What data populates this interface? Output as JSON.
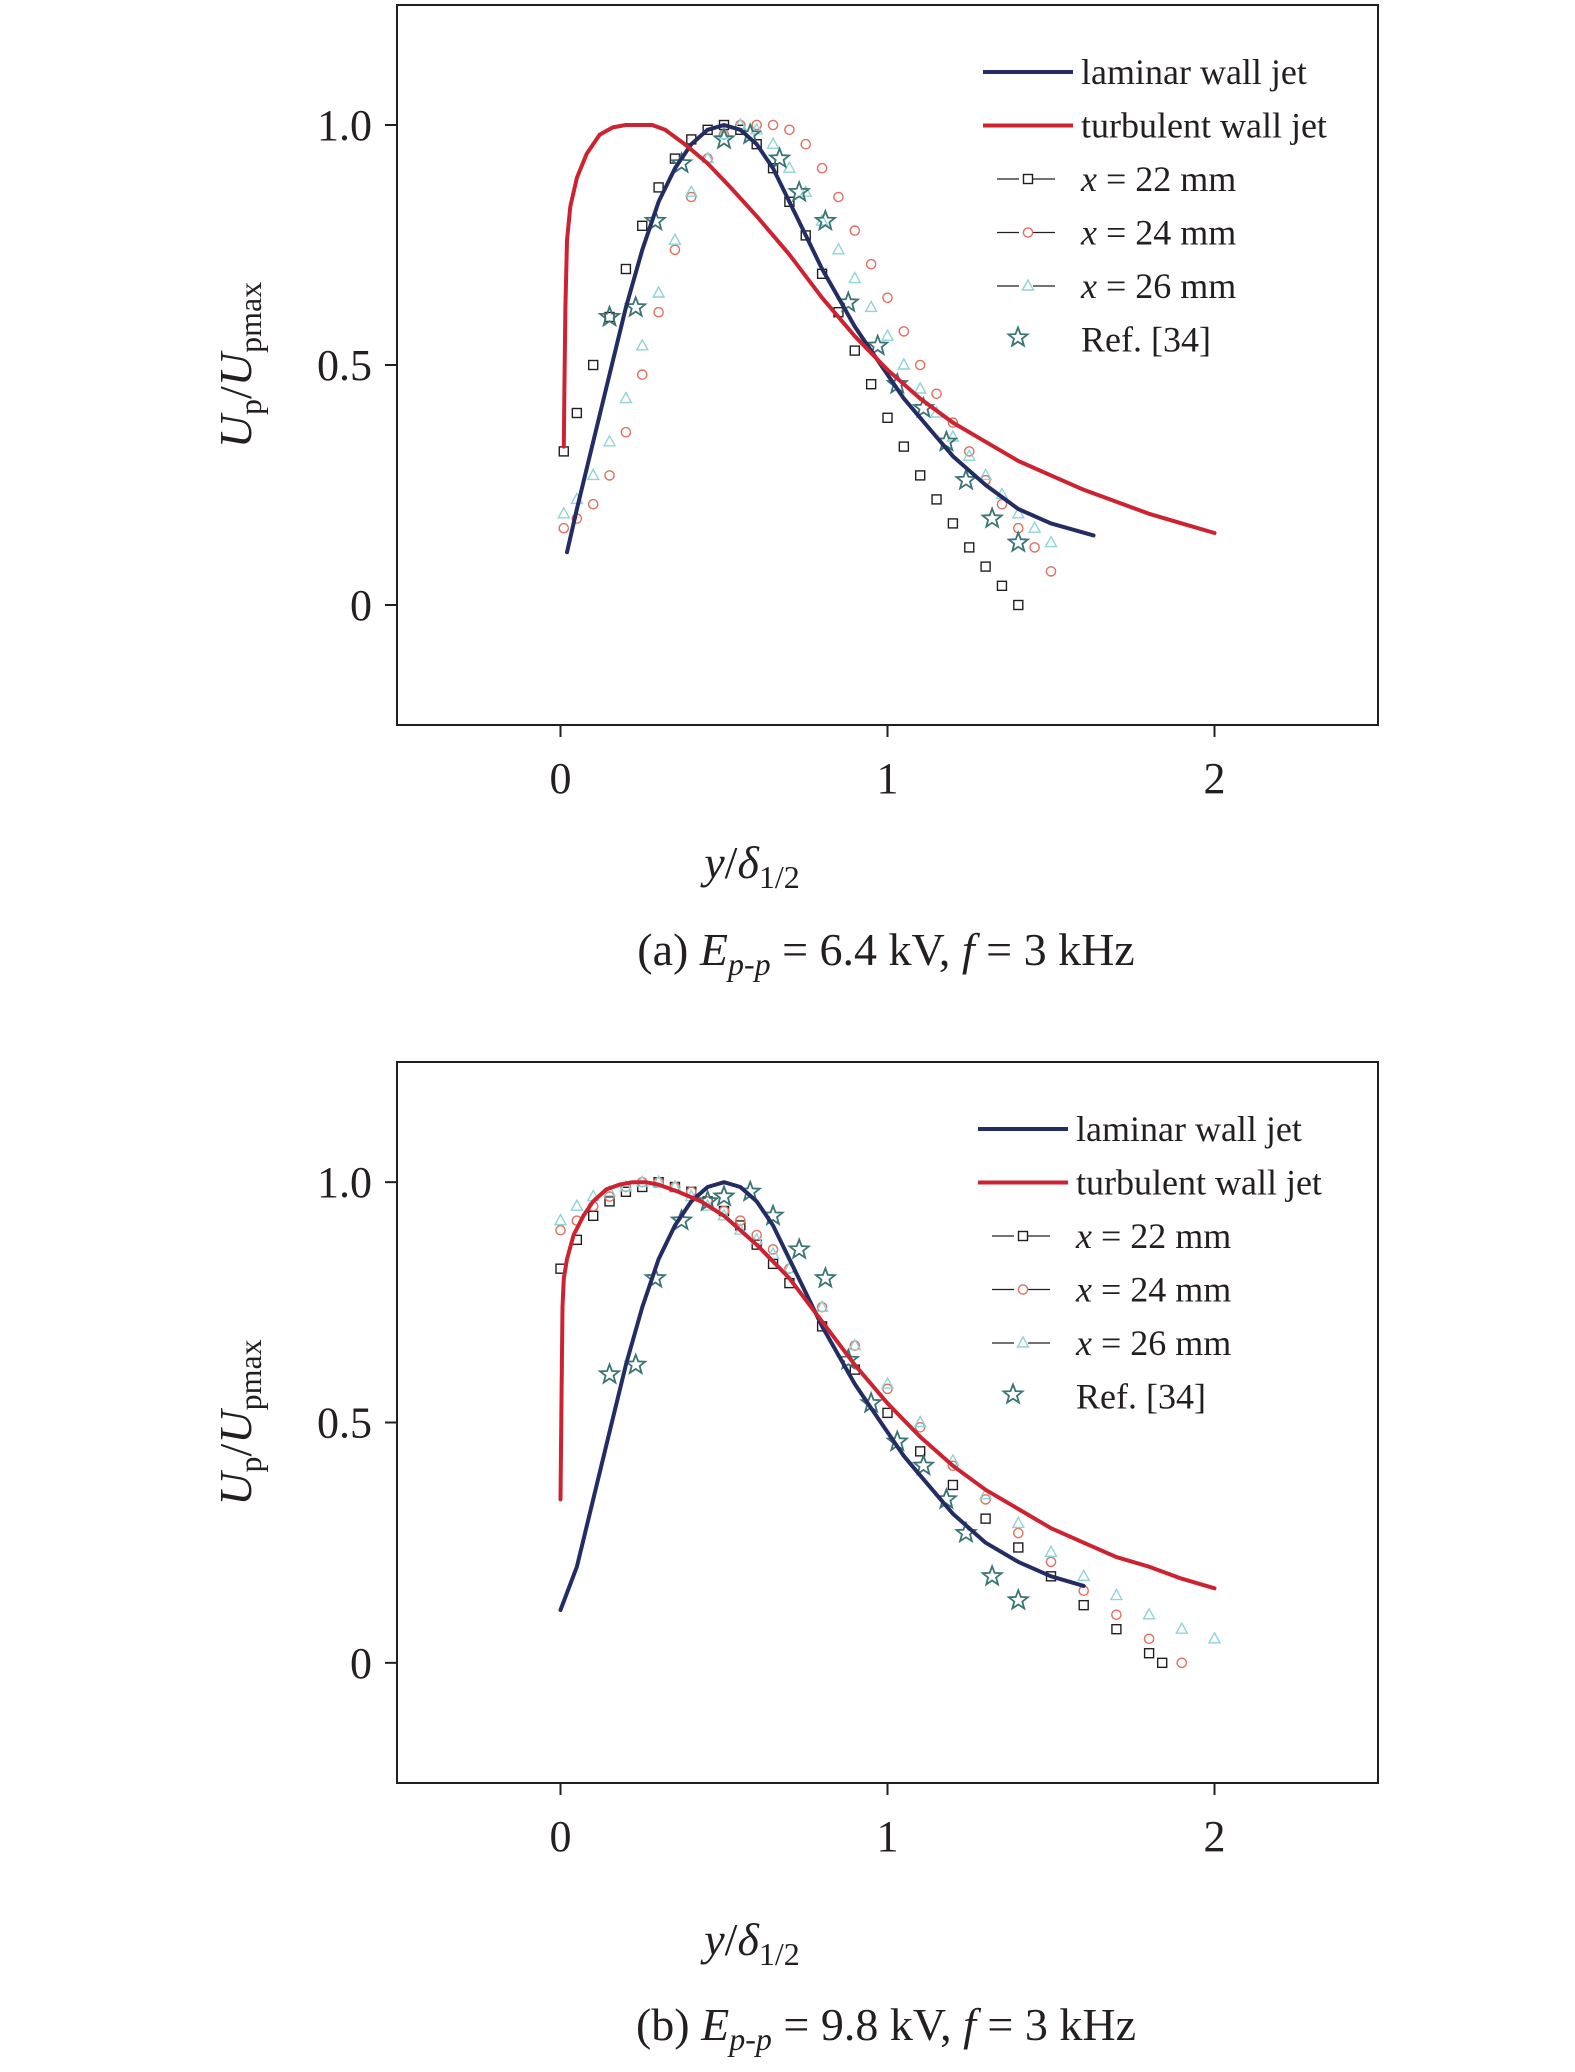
{
  "colors": {
    "laminar": "#232d63",
    "turbulent": "#cd2331",
    "x22": "#231f20",
    "x24": "#e07060",
    "x26": "#8fd4d8",
    "ref": "#3a7474",
    "axis": "#231f20"
  },
  "chart_data": [
    {
      "type": "line",
      "panel": "a",
      "caption": {
        "prefix": "(a) ",
        "E": "E",
        "E_sub": "p-p",
        "mid": " = 6.4 kV, ",
        "f": "f",
        "suffix": " = 3 kHz"
      },
      "xlabel": {
        "y": "y",
        "slash": "/",
        "delta": "δ",
        "delta_sub": "1/2"
      },
      "ylabel": {
        "U": "U",
        "U_sub": "p",
        "slash": "/",
        "U2": "U",
        "U2_sub": "pmax"
      },
      "xlim": [
        -0.5,
        2.5
      ],
      "ylim": [
        -0.25,
        1.25
      ],
      "x_ticks": [
        0,
        1,
        2
      ],
      "x_tick_labels": [
        "0",
        "1",
        "2"
      ],
      "y_ticks": [
        0,
        0.5,
        1.0
      ],
      "y_tick_labels": [
        "0",
        "0.5",
        "1.0"
      ],
      "legend_position": "top-right",
      "series": [
        {
          "name": "laminar wall jet",
          "style": "line",
          "x": [
            0.02,
            0.05,
            0.1,
            0.15,
            0.2,
            0.25,
            0.3,
            0.35,
            0.4,
            0.45,
            0.5,
            0.55,
            0.6,
            0.65,
            0.7,
            0.75,
            0.8,
            0.85,
            0.9,
            0.95,
            1.0,
            1.05,
            1.1,
            1.15,
            1.2,
            1.3,
            1.4,
            1.5,
            1.63
          ],
          "y": [
            0.11,
            0.2,
            0.34,
            0.48,
            0.62,
            0.74,
            0.84,
            0.91,
            0.96,
            0.99,
            1.0,
            0.99,
            0.96,
            0.91,
            0.84,
            0.77,
            0.7,
            0.64,
            0.58,
            0.53,
            0.48,
            0.43,
            0.39,
            0.35,
            0.31,
            0.25,
            0.2,
            0.17,
            0.145
          ]
        },
        {
          "name": "turbulent wall jet",
          "style": "line",
          "x": [
            0.01,
            0.012,
            0.015,
            0.02,
            0.03,
            0.05,
            0.08,
            0.12,
            0.16,
            0.2,
            0.24,
            0.28,
            0.32,
            0.38,
            0.45,
            0.52,
            0.6,
            0.7,
            0.8,
            0.9,
            1.0,
            1.1,
            1.2,
            1.3,
            1.4,
            1.5,
            1.6,
            1.7,
            1.8,
            1.9,
            2.0
          ],
          "y": [
            0.33,
            0.45,
            0.62,
            0.76,
            0.83,
            0.89,
            0.94,
            0.98,
            0.995,
            1.0,
            1.0,
            1.0,
            0.99,
            0.96,
            0.92,
            0.87,
            0.81,
            0.73,
            0.64,
            0.56,
            0.49,
            0.43,
            0.38,
            0.34,
            0.3,
            0.27,
            0.24,
            0.215,
            0.19,
            0.17,
            0.15
          ]
        },
        {
          "name": "x = 22 mm",
          "name_x": "x",
          "name_rest": " = 22 mm",
          "style": "square",
          "x": [
            0.01,
            0.05,
            0.1,
            0.15,
            0.2,
            0.25,
            0.3,
            0.35,
            0.4,
            0.45,
            0.5,
            0.55,
            0.6,
            0.65,
            0.7,
            0.75,
            0.8,
            0.85,
            0.9,
            0.95,
            1.0,
            1.05,
            1.1,
            1.15,
            1.2,
            1.25,
            1.3,
            1.35,
            1.4
          ],
          "y": [
            0.32,
            0.4,
            0.5,
            0.6,
            0.7,
            0.79,
            0.87,
            0.93,
            0.97,
            0.99,
            1.0,
            0.99,
            0.96,
            0.91,
            0.84,
            0.77,
            0.69,
            0.61,
            0.53,
            0.46,
            0.39,
            0.33,
            0.27,
            0.22,
            0.17,
            0.12,
            0.08,
            0.04,
            0.0
          ]
        },
        {
          "name": "x = 24 mm",
          "name_x": "x",
          "name_rest": " = 24 mm",
          "style": "circle",
          "x": [
            0.01,
            0.05,
            0.1,
            0.15,
            0.2,
            0.25,
            0.3,
            0.35,
            0.4,
            0.45,
            0.5,
            0.55,
            0.6,
            0.65,
            0.7,
            0.75,
            0.8,
            0.85,
            0.9,
            0.95,
            1.0,
            1.05,
            1.1,
            1.15,
            1.2,
            1.25,
            1.3,
            1.35,
            1.4,
            1.45,
            1.5
          ],
          "y": [
            0.16,
            0.18,
            0.21,
            0.27,
            0.36,
            0.48,
            0.61,
            0.74,
            0.85,
            0.93,
            0.98,
            1.0,
            1.0,
            1.0,
            0.99,
            0.96,
            0.91,
            0.85,
            0.78,
            0.71,
            0.64,
            0.57,
            0.5,
            0.44,
            0.38,
            0.32,
            0.26,
            0.21,
            0.16,
            0.12,
            0.07
          ]
        },
        {
          "name": "x = 26 mm",
          "name_x": "x",
          "name_rest": " = 26 mm",
          "style": "triangle",
          "x": [
            0.01,
            0.05,
            0.1,
            0.15,
            0.2,
            0.25,
            0.3,
            0.35,
            0.4,
            0.45,
            0.5,
            0.55,
            0.6,
            0.65,
            0.7,
            0.75,
            0.8,
            0.85,
            0.9,
            0.95,
            1.0,
            1.05,
            1.1,
            1.15,
            1.2,
            1.25,
            1.3,
            1.35,
            1.4,
            1.45,
            1.5
          ],
          "y": [
            0.19,
            0.22,
            0.27,
            0.34,
            0.43,
            0.54,
            0.65,
            0.76,
            0.86,
            0.93,
            0.98,
            1.0,
            0.99,
            0.96,
            0.91,
            0.86,
            0.8,
            0.74,
            0.68,
            0.62,
            0.56,
            0.5,
            0.45,
            0.4,
            0.35,
            0.31,
            0.27,
            0.23,
            0.19,
            0.16,
            0.13
          ]
        },
        {
          "name": "Ref. [34]",
          "style": "star",
          "x": [
            0.15,
            0.23,
            0.29,
            0.37,
            0.5,
            0.58,
            0.67,
            0.73,
            0.81,
            0.88,
            0.97,
            1.03,
            1.11,
            1.18,
            1.24,
            1.32,
            1.4
          ],
          "y": [
            0.6,
            0.62,
            0.8,
            0.92,
            0.97,
            0.98,
            0.93,
            0.86,
            0.8,
            0.63,
            0.54,
            0.46,
            0.41,
            0.34,
            0.26,
            0.18,
            0.13
          ]
        }
      ]
    },
    {
      "type": "line",
      "panel": "b",
      "caption": {
        "prefix": "(b) ",
        "E": "E",
        "E_sub": "p-p",
        "mid": " = 9.8 kV, ",
        "f": "f",
        "suffix": " = 3 kHz"
      },
      "xlabel": {
        "y": "y",
        "slash": "/",
        "delta": "δ",
        "delta_sub": "1/2"
      },
      "ylabel": {
        "U": "U",
        "U_sub": "p",
        "slash": "/",
        "U2": "U",
        "U2_sub": "pmax"
      },
      "xlim": [
        -0.5,
        2.5
      ],
      "ylim": [
        -0.25,
        1.25
      ],
      "x_ticks": [
        0,
        1,
        2
      ],
      "x_tick_labels": [
        "0",
        "1",
        "2"
      ],
      "y_ticks": [
        0,
        0.5,
        1.0
      ],
      "y_tick_labels": [
        "0",
        "0.5",
        "1.0"
      ],
      "legend_position": "top-right",
      "series": [
        {
          "name": "laminar wall jet",
          "style": "line",
          "x": [
            0.0,
            0.05,
            0.1,
            0.15,
            0.2,
            0.25,
            0.3,
            0.35,
            0.4,
            0.45,
            0.5,
            0.55,
            0.6,
            0.65,
            0.7,
            0.75,
            0.8,
            0.85,
            0.9,
            0.95,
            1.0,
            1.05,
            1.1,
            1.15,
            1.2,
            1.3,
            1.4,
            1.5,
            1.6
          ],
          "y": [
            0.11,
            0.2,
            0.34,
            0.48,
            0.62,
            0.74,
            0.84,
            0.91,
            0.96,
            0.99,
            1.0,
            0.99,
            0.96,
            0.91,
            0.84,
            0.77,
            0.7,
            0.64,
            0.58,
            0.53,
            0.48,
            0.43,
            0.39,
            0.35,
            0.31,
            0.25,
            0.21,
            0.18,
            0.16
          ]
        },
        {
          "name": "turbulent wall jet",
          "style": "line",
          "x": [
            0.0,
            0.003,
            0.006,
            0.01,
            0.02,
            0.04,
            0.07,
            0.1,
            0.14,
            0.18,
            0.22,
            0.26,
            0.3,
            0.36,
            0.43,
            0.5,
            0.6,
            0.7,
            0.8,
            0.9,
            1.0,
            1.1,
            1.2,
            1.3,
            1.4,
            1.5,
            1.6,
            1.7,
            1.8,
            1.9,
            2.0
          ],
          "y": [
            0.34,
            0.55,
            0.74,
            0.8,
            0.84,
            0.89,
            0.93,
            0.96,
            0.985,
            0.995,
            1.0,
            1.0,
            0.995,
            0.98,
            0.96,
            0.93,
            0.87,
            0.8,
            0.71,
            0.62,
            0.54,
            0.47,
            0.41,
            0.36,
            0.32,
            0.28,
            0.25,
            0.22,
            0.2,
            0.175,
            0.155
          ]
        },
        {
          "name": "x = 22 mm",
          "name_x": "x",
          "name_rest": " = 22 mm",
          "style": "square",
          "x": [
            0.0,
            0.05,
            0.1,
            0.15,
            0.2,
            0.25,
            0.3,
            0.35,
            0.4,
            0.45,
            0.5,
            0.55,
            0.6,
            0.65,
            0.7,
            0.8,
            0.9,
            1.0,
            1.1,
            1.2,
            1.3,
            1.4,
            1.5,
            1.6,
            1.7,
            1.8,
            1.84
          ],
          "y": [
            0.82,
            0.88,
            0.93,
            0.96,
            0.98,
            0.99,
            1.0,
            0.99,
            0.98,
            0.96,
            0.94,
            0.91,
            0.87,
            0.83,
            0.79,
            0.7,
            0.61,
            0.52,
            0.44,
            0.37,
            0.3,
            0.24,
            0.18,
            0.12,
            0.07,
            0.02,
            0.0
          ]
        },
        {
          "name": "x = 24 mm",
          "name_x": "x",
          "name_rest": " = 24 mm",
          "style": "circle",
          "x": [
            0.0,
            0.05,
            0.1,
            0.15,
            0.2,
            0.25,
            0.3,
            0.35,
            0.4,
            0.45,
            0.5,
            0.55,
            0.6,
            0.65,
            0.7,
            0.8,
            0.9,
            1.0,
            1.1,
            1.2,
            1.3,
            1.4,
            1.5,
            1.6,
            1.7,
            1.8,
            1.9
          ],
          "y": [
            0.9,
            0.92,
            0.95,
            0.97,
            0.99,
            1.0,
            1.0,
            0.99,
            0.98,
            0.96,
            0.94,
            0.92,
            0.89,
            0.86,
            0.82,
            0.74,
            0.66,
            0.57,
            0.49,
            0.41,
            0.34,
            0.27,
            0.21,
            0.15,
            0.1,
            0.05,
            0.0
          ]
        },
        {
          "name": "x = 26 mm",
          "name_x": "x",
          "name_rest": " = 26 mm",
          "style": "triangle",
          "x": [
            0.0,
            0.05,
            0.1,
            0.15,
            0.2,
            0.25,
            0.3,
            0.35,
            0.4,
            0.45,
            0.5,
            0.55,
            0.6,
            0.65,
            0.7,
            0.8,
            0.9,
            1.0,
            1.1,
            1.2,
            1.3,
            1.4,
            1.5,
            1.6,
            1.7,
            1.8,
            1.9,
            2.0
          ],
          "y": [
            0.92,
            0.95,
            0.97,
            0.98,
            0.99,
            1.0,
            1.0,
            0.99,
            0.97,
            0.95,
            0.93,
            0.9,
            0.88,
            0.85,
            0.82,
            0.74,
            0.66,
            0.58,
            0.5,
            0.42,
            0.35,
            0.29,
            0.23,
            0.18,
            0.14,
            0.1,
            0.07,
            0.05
          ]
        },
        {
          "name": "Ref. [34]",
          "style": "star",
          "x": [
            0.15,
            0.23,
            0.29,
            0.37,
            0.45,
            0.5,
            0.58,
            0.65,
            0.73,
            0.81,
            0.88,
            0.95,
            1.03,
            1.11,
            1.18,
            1.24,
            1.32,
            1.4
          ],
          "y": [
            0.6,
            0.62,
            0.8,
            0.92,
            0.96,
            0.97,
            0.98,
            0.93,
            0.86,
            0.8,
            0.63,
            0.54,
            0.46,
            0.41,
            0.34,
            0.27,
            0.18,
            0.13
          ]
        }
      ]
    }
  ]
}
